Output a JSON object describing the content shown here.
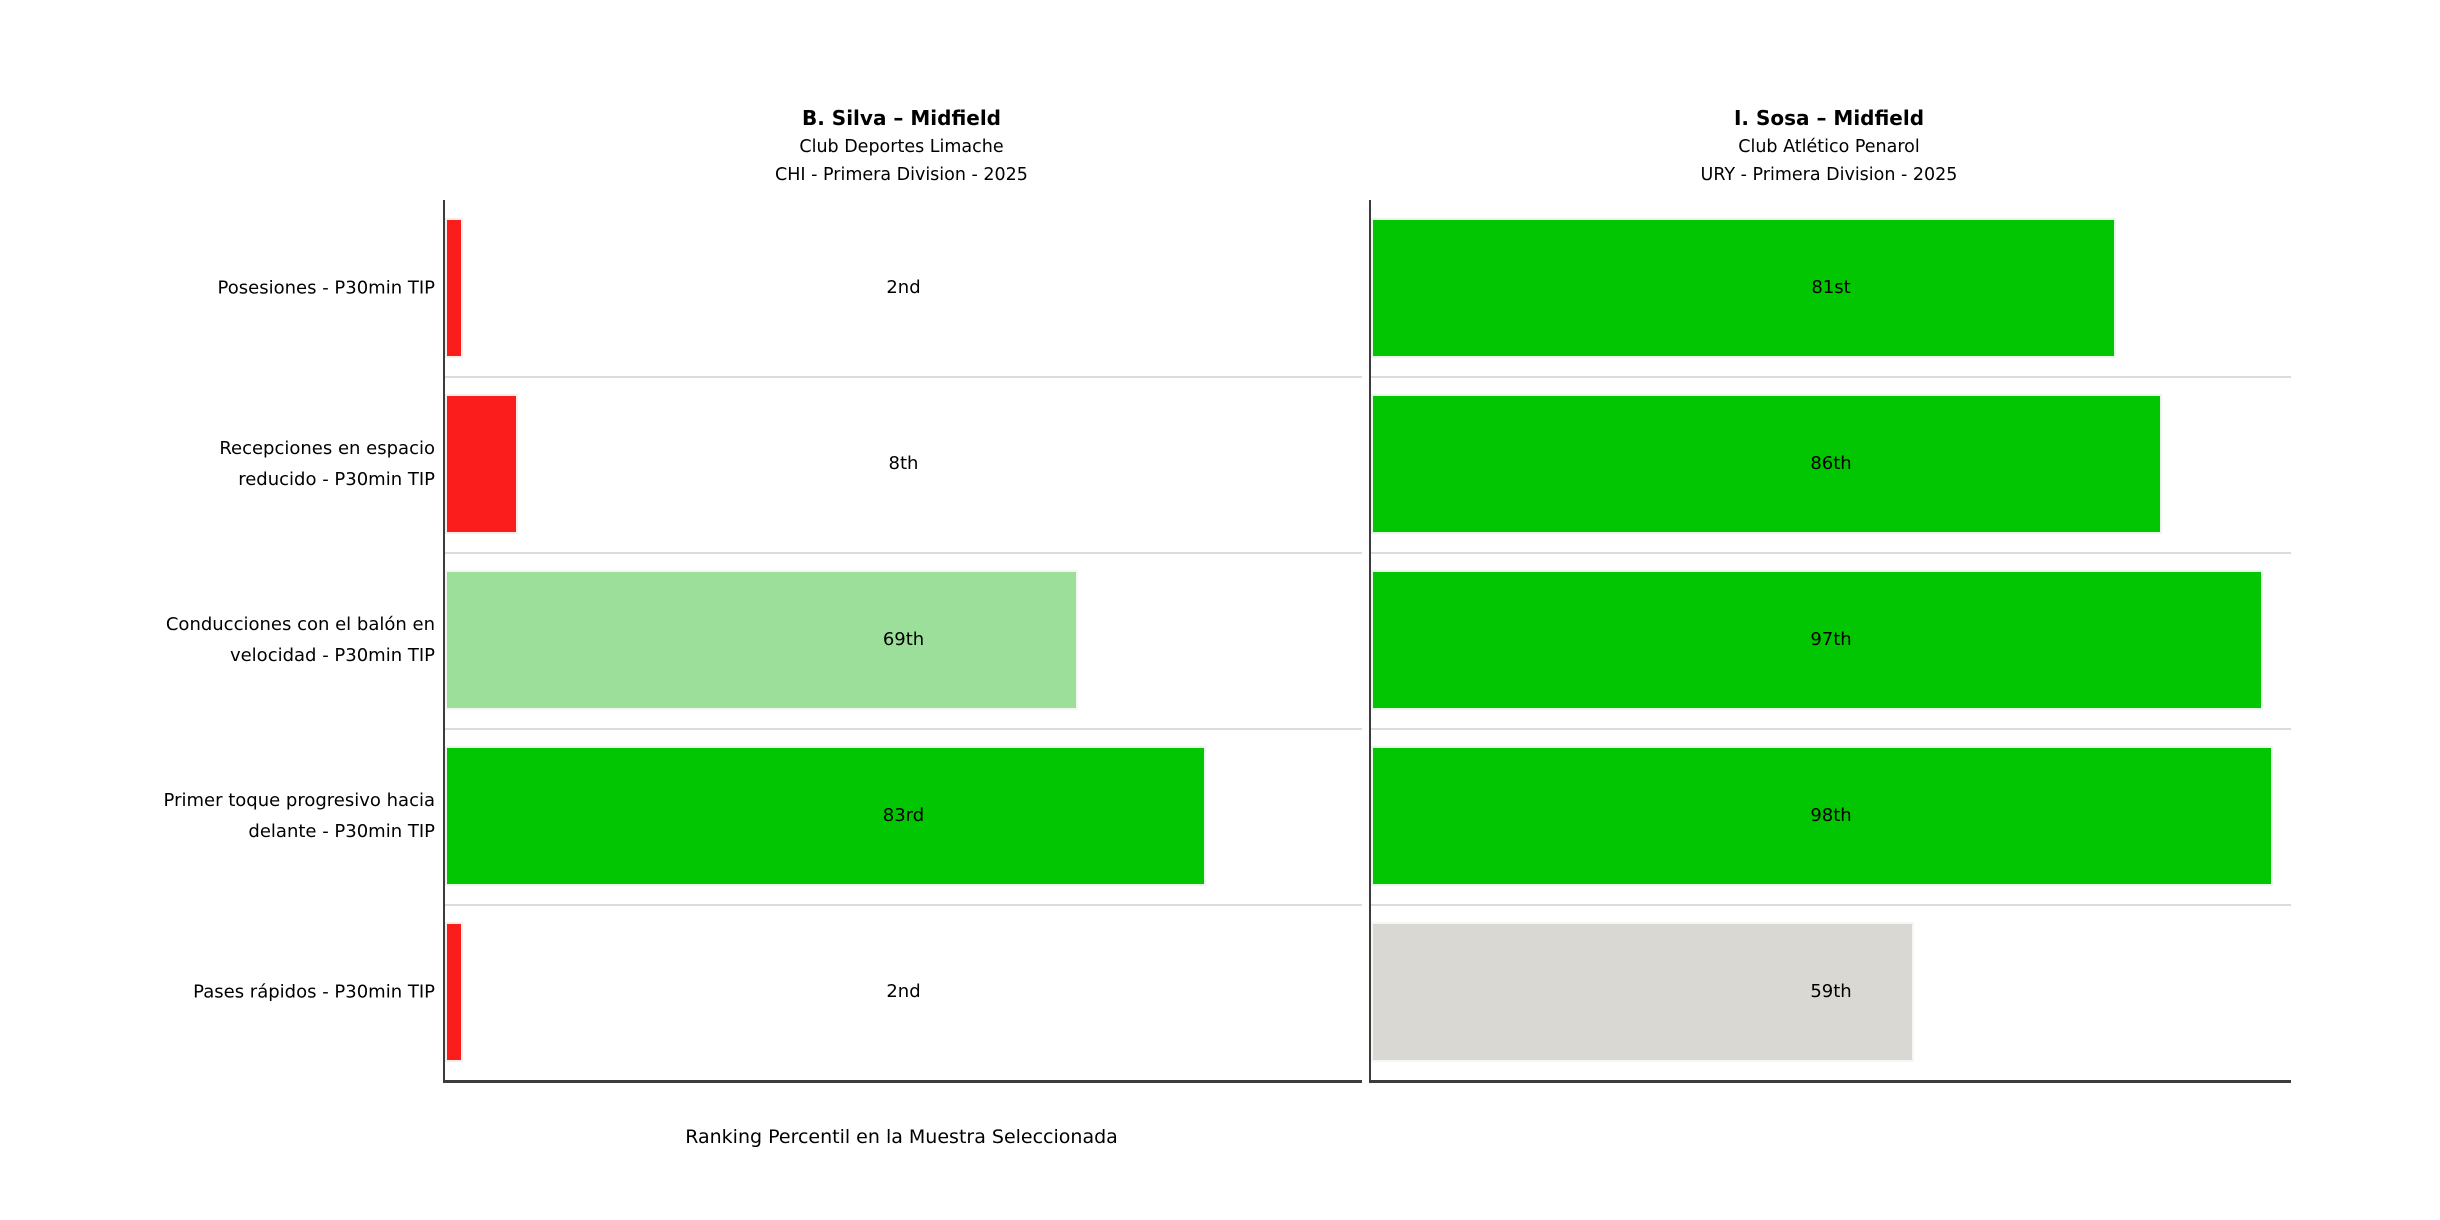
{
  "chart_data": {
    "type": "bar",
    "orientation": "horizontal",
    "xlim": [
      0,
      100
    ],
    "xlabel": "Ranking Percentil en la Muestra Seleccionada",
    "legend": "none",
    "grid": "horizontal-row-separators",
    "categories": [
      "Posesiones - P30min TIP",
      "Recepciones en espacio\nreducido - P30min TIP",
      "Conducciones con el balón en\nvelocidad - P30min TIP",
      "Primer toque progresivo hacia\ndelante - P30min TIP",
      "Pases rápidos - P30min TIP"
    ],
    "panels": [
      {
        "title": "B. Silva – Midfield",
        "subtitle_club": "Club Deportes Limache",
        "subtitle_league": "CHI - Primera Division - 2025",
        "values": [
          2,
          8,
          69,
          83,
          2
        ],
        "bar_labels": [
          "2nd",
          "8th",
          "69th",
          "83rd",
          "2nd"
        ],
        "bar_colors": [
          "#fb1c1c",
          "#fb1c1c",
          "#9bdf9b",
          "#01c601",
          "#fb1c1c"
        ]
      },
      {
        "title": "I. Sosa – Midfield",
        "subtitle_club": "Club Atlético Penarol",
        "subtitle_league": "URY - Primera Division - 2025",
        "values": [
          81,
          86,
          97,
          98,
          59
        ],
        "bar_labels": [
          "81st",
          "86th",
          "97th",
          "98th",
          "59th"
        ],
        "bar_colors": [
          "#01c601",
          "#01c601",
          "#01c601",
          "#01c601",
          "#d9d8d2"
        ]
      }
    ],
    "palette": {
      "low_percentile": "#fb1c1c",
      "mid_percentile": "#9bdf9b",
      "high_percentile": "#01c601",
      "neutral_percentile": "#d9d8d2",
      "axis_spine": "#3c3c3c",
      "row_separator": "#dcdcdc"
    }
  }
}
